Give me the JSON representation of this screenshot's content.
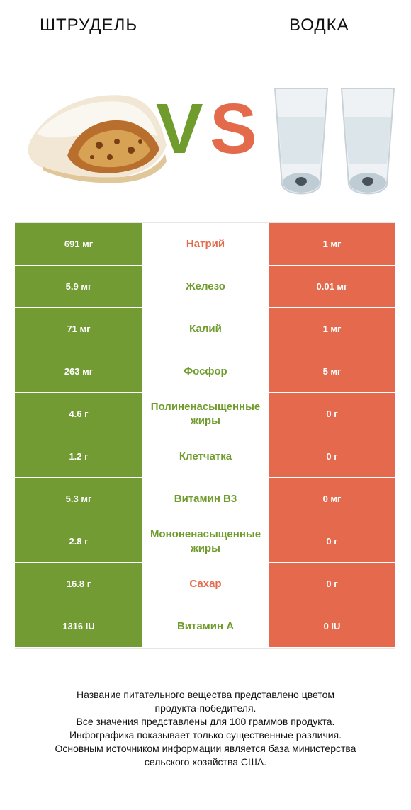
{
  "header": {
    "left_title": "ШТРУДЕЛЬ",
    "right_title": "ВОДКА",
    "vs_v": "V",
    "vs_s": "S"
  },
  "colors": {
    "left": "#729b34",
    "right": "#e4694d"
  },
  "rows": [
    {
      "left": "691 мг",
      "label": "Натрий",
      "right": "1 мг",
      "winner": "right"
    },
    {
      "left": "5.9 мг",
      "label": "Железо",
      "right": "0.01 мг",
      "winner": "left"
    },
    {
      "left": "71 мг",
      "label": "Калий",
      "right": "1 мг",
      "winner": "left"
    },
    {
      "left": "263 мг",
      "label": "Фосфор",
      "right": "5 мг",
      "winner": "left"
    },
    {
      "left": "4.6 г",
      "label": "Полиненасыщенные жиры",
      "right": "0 г",
      "winner": "left"
    },
    {
      "left": "1.2 г",
      "label": "Клетчатка",
      "right": "0 г",
      "winner": "left"
    },
    {
      "left": "5.3 мг",
      "label": "Витамин B3",
      "right": "0 мг",
      "winner": "left"
    },
    {
      "left": "2.8 г",
      "label": "Мононенасыщенные жиры",
      "right": "0 г",
      "winner": "left"
    },
    {
      "left": "16.8 г",
      "label": "Сахар",
      "right": "0 г",
      "winner": "right"
    },
    {
      "left": "1316 IU",
      "label": "Витамин A",
      "right": "0 IU",
      "winner": "left"
    }
  ],
  "footer": {
    "line1": "Название питательного вещества представлено цветом",
    "line2": "продукта-победителя.",
    "line3": "Все значения представлены для 100 граммов продукта.",
    "line4": "Инфографика показывает только существенные различия.",
    "line5": "Основным источником информации является база министерства",
    "line6": "сельского хозяйства США."
  }
}
